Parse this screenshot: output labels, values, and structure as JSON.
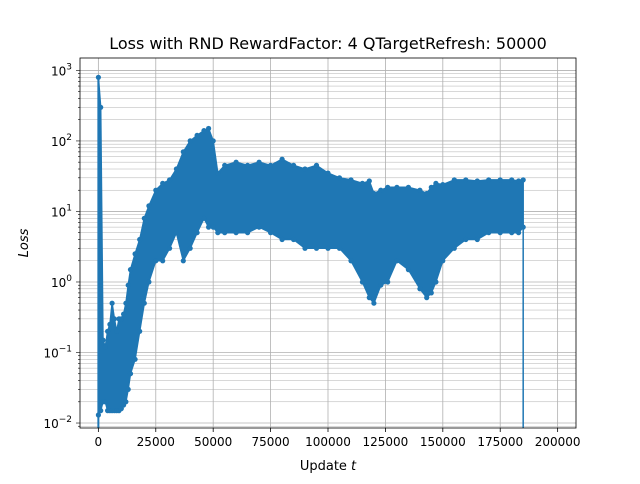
{
  "chart_data": {
    "type": "scatter",
    "title": "Loss with RND RewardFactor: 4 QTargetRefresh: 50000",
    "xlabel_prefix": "Update ",
    "xlabel_var": "t",
    "ylabel": "Loss",
    "xlim": [
      -8000,
      208000
    ],
    "ylim": [
      0.0085,
      1500
    ],
    "yscale": "log",
    "grid": true,
    "xticks": [
      {
        "value": 0,
        "label": "0"
      },
      {
        "value": 25000,
        "label": "25000"
      },
      {
        "value": 50000,
        "label": "50000"
      },
      {
        "value": 75000,
        "label": "75000"
      },
      {
        "value": 100000,
        "label": "100000"
      },
      {
        "value": 125000,
        "label": "125000"
      },
      {
        "value": 150000,
        "label": "150000"
      },
      {
        "value": 175000,
        "label": "175000"
      },
      {
        "value": 200000,
        "label": "200000"
      }
    ],
    "yticks": [
      {
        "value": 0.01,
        "base": "10",
        "exp": "−2"
      },
      {
        "value": 0.1,
        "base": "10",
        "exp": "−1"
      },
      {
        "value": 1,
        "base": "10",
        "exp": "0"
      },
      {
        "value": 10,
        "base": "10",
        "exp": "1"
      },
      {
        "value": 100,
        "base": "10",
        "exp": "2"
      },
      {
        "value": 1000,
        "base": "10",
        "exp": "3"
      }
    ],
    "color": "#1f77b4",
    "series": [
      {
        "x": [
          0,
          1000,
          2000,
          3000,
          4000,
          5000,
          6000,
          7000,
          8000,
          9000,
          10000,
          11000,
          12000,
          13000,
          14000,
          16000,
          18000,
          20000,
          22000,
          25000,
          28000,
          31000,
          34000,
          37000,
          40000,
          43000,
          46000,
          48000,
          50000,
          52000,
          55000,
          60000,
          65000,
          70000,
          75000,
          80000,
          85000,
          90000,
          95000,
          100000,
          105000,
          110000,
          115000,
          118000,
          120000,
          123000,
          126000,
          130000,
          135000,
          140000,
          143000,
          145000,
          147000,
          150000,
          155000,
          160000,
          165000,
          170000,
          175000,
          180000,
          183000,
          185000
        ],
        "upper": [
          800,
          300,
          0.15,
          0.12,
          0.2,
          0.25,
          0.5,
          0.3,
          0.2,
          0.3,
          0.3,
          0.35,
          0.5,
          0.9,
          1.5,
          2.5,
          4,
          8,
          12,
          20,
          25,
          28,
          40,
          70,
          100,
          120,
          140,
          150,
          100,
          35,
          45,
          50,
          45,
          50,
          45,
          55,
          45,
          40,
          45,
          35,
          30,
          28,
          25,
          27,
          18,
          20,
          22,
          22,
          22,
          20,
          18,
          22,
          25,
          24,
          28,
          28,
          27,
          28,
          28,
          28,
          27,
          28
        ],
        "lower": [
          0.013,
          0.015,
          0.02,
          0.02,
          0.015,
          0.015,
          0.015,
          0.015,
          0.015,
          0.015,
          0.016,
          0.018,
          0.02,
          0.03,
          0.05,
          0.08,
          0.2,
          0.5,
          1,
          2,
          2,
          3,
          5,
          2,
          3,
          5,
          8,
          6,
          6,
          5,
          5,
          5,
          5,
          6,
          5,
          4,
          4,
          3,
          3,
          3,
          3,
          2,
          1,
          0.6,
          0.5,
          0.9,
          1,
          2,
          1.5,
          0.8,
          0.6,
          0.7,
          1,
          2,
          3,
          4,
          4,
          5,
          5,
          5,
          5,
          6
        ]
      }
    ]
  }
}
